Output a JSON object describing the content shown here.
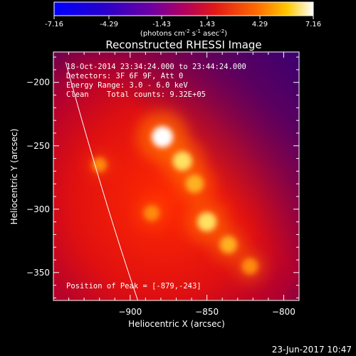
{
  "colorbar": {
    "ticks": [
      "-7.16",
      "-4.29",
      "-1.43",
      "1.43",
      "4.29",
      "7.16"
    ],
    "units_prefix": "(photons cm",
    "units_exp1": "-2",
    "units_mid": " s",
    "units_exp2": "-1",
    "units_mid2": " asec",
    "units_exp3": "-2",
    "units_suffix": ")"
  },
  "title": "Reconstructed RHESSI Image",
  "info": {
    "line1": "18-Oct-2014 23:34:24.000 to 23:44:24.000",
    "line2": "Detectors: 3F 6F 9F, Att 0",
    "line3": "Energy Range: 3.0 - 6.0 keV",
    "line4": "Clean    Total counts: 9.32E+05"
  },
  "peak_label": "Position of Peak = [-879,-243]",
  "footer_date": "23-Jun-2017 10:47",
  "chart_data": {
    "type": "heatmap",
    "title": "Reconstructed RHESSI Image",
    "xlabel": "Heliocentric X (arcsec)",
    "ylabel": "Heliocentric Y (arcsec)",
    "xlim": [
      -950,
      -790
    ],
    "ylim": [
      -372,
      -176
    ],
    "x_ticks": [
      -900,
      -850,
      -800
    ],
    "y_ticks": [
      -200,
      -250,
      -300,
      -350
    ],
    "x_tick_labels": [
      "−900",
      "−850",
      "−800"
    ],
    "y_tick_labels": [
      "−200",
      "−250",
      "−300",
      "−350"
    ],
    "colormap": "hot-with-blue-negative",
    "color_range": [
      -7.16,
      7.16
    ],
    "peak": [
      -879,
      -243
    ],
    "sources": [
      {
        "x": -879,
        "y": -243,
        "intensity": 1.0
      },
      {
        "x": -866,
        "y": -262,
        "intensity": 0.8
      },
      {
        "x": -858,
        "y": -280,
        "intensity": 0.68
      },
      {
        "x": -850,
        "y": -310,
        "intensity": 0.8
      },
      {
        "x": -836,
        "y": -328,
        "intensity": 0.62
      },
      {
        "x": -822,
        "y": -345,
        "intensity": 0.52
      },
      {
        "x": -886,
        "y": -303,
        "intensity": 0.45
      },
      {
        "x": -920,
        "y": -265,
        "intensity": 0.35
      }
    ],
    "limb_curve": [
      [
        -942,
        -184
      ],
      [
        -918,
        -290
      ],
      [
        -895,
        -372
      ]
    ]
  }
}
